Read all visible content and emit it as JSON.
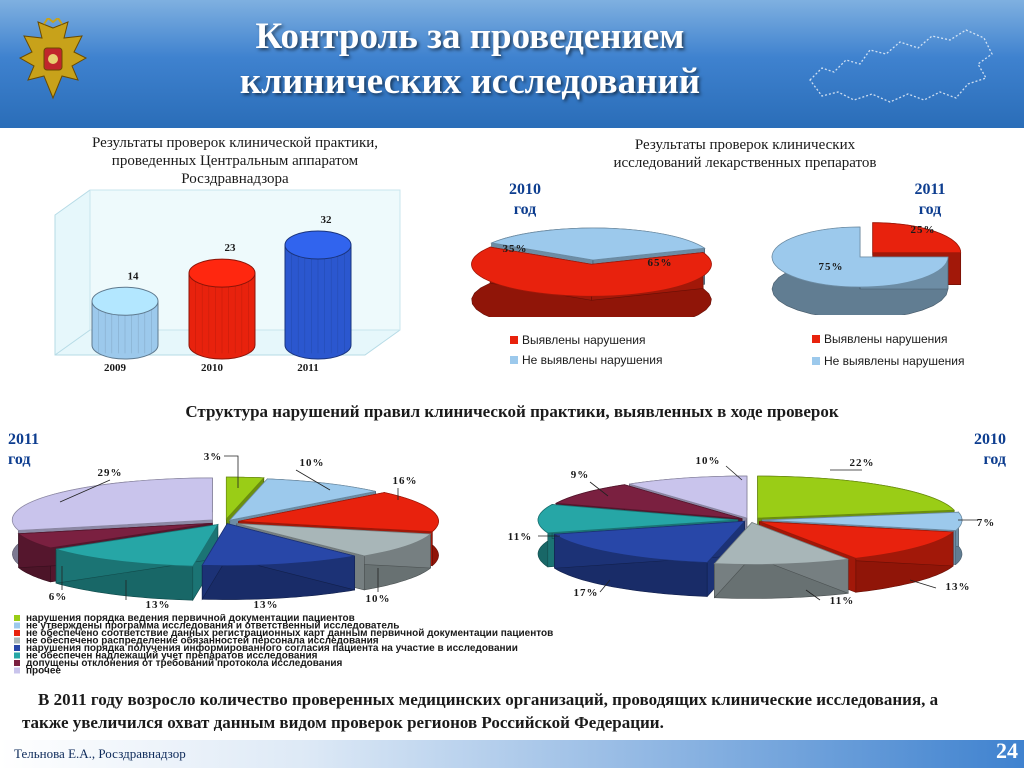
{
  "header": {
    "title_line1": "Контроль за проведением",
    "title_line2": "клинических исследований",
    "emblem_icon": "double-headed-eagle-emblem",
    "map_icon": "russia-map-outline"
  },
  "colors": {
    "header_blue": "#3f82cf",
    "red": "#e8220d",
    "light_blue": "#9cc9ec",
    "green": "#9acd16",
    "gray": "#a8b6b8",
    "navy": "#2847a8",
    "teal": "#26a6a6",
    "maroon": "#7a2040",
    "lavender": "#c9c4ec"
  },
  "bar_section": {
    "caption_line1": "Результаты проверок клинической практики,",
    "caption_line2": "проведенных Центральным аппаратом",
    "caption_line3": "Росздравнадзора"
  },
  "pie_top": {
    "caption_line1": "Результаты проверок клинических",
    "caption_line2": "исследований лекарственных препаратов",
    "left_year": "2010",
    "left_year_suffix": "год",
    "right_year": "2011",
    "right_year_suffix": "год",
    "legend_found": "Выявлены нарушения",
    "legend_not_found": "Не выявлены нарушения"
  },
  "structure": {
    "title": "Структура нарушений правил клинической практики, выявленных в ходе проверок",
    "left_year": "2011",
    "left_year_suffix": "год",
    "right_year": "2010",
    "right_year_suffix": "год",
    "legend": [
      "нарушения порядка ведения первичной документации пациентов",
      "не утверждены программа исследования и ответственный исследователь",
      "не обеспечено соответствие данных регистрационных карт данным первичной документации пациентов",
      "не обеспечено распределение обязанностей персонала исследования",
      "нарушения порядка получения информированного согласия пациента на участие в исследовании",
      "не обеспечен надлежащий учет препаратов исследования",
      "допущены отклонения от требований протокола исследования",
      "прочее"
    ]
  },
  "chart_data": [
    {
      "type": "bar",
      "title": "Результаты проверок клинической практики, проведенных Центральным аппаратом Росздравнадзора",
      "categories": [
        "2009",
        "2010",
        "2011"
      ],
      "values": [
        14,
        23,
        32
      ],
      "colors": [
        "#9cc9ec",
        "#e8220d",
        "#2b57cf"
      ]
    },
    {
      "type": "pie",
      "label": "2010 год",
      "labels": [
        "Выявлены нарушения",
        "Не выявлены нарушения"
      ],
      "values": [
        65,
        35
      ],
      "display": [
        "65%",
        "35%"
      ]
    },
    {
      "type": "pie",
      "label": "2011 год",
      "labels": [
        "Выявлены нарушения",
        "Не выявлены нарушения"
      ],
      "values": [
        25,
        75
      ],
      "display": [
        "25%",
        "75%"
      ]
    },
    {
      "type": "pie",
      "label": "2011 год",
      "labels": [
        "нарушения порядка ведения первичной документации пациентов",
        "не утверждены программа исследования и ответственный исследователь",
        "не обеспечено соответствие данных регистрационных карт данным первичной документации пациентов",
        "не обеспечено распределение обязанностей персонала исследования",
        "нарушения порядка получения информированного согласия пациента на участие в исследовании",
        "не обеспечен надлежащий учет препаратов исследования",
        "допущены отклонения от требований протокола исследования",
        "прочее"
      ],
      "values": [
        3,
        10,
        16,
        10,
        13,
        13,
        6,
        29
      ],
      "display": [
        "3%",
        "10%",
        "16%",
        "10%",
        "13%",
        "13%",
        "6%",
        "29%"
      ]
    },
    {
      "type": "pie",
      "label": "2010 год",
      "labels": [
        "нарушения порядка ведения первичной документации пациентов",
        "не утверждены программа исследования и ответственный исследователь",
        "не обеспечено соответствие данных регистрационных карт данным первичной документации пациентов",
        "не обеспечено распределение обязанностей персонала исследования",
        "нарушения порядка получения информированного согласия пациента на участие в исследовании",
        "не обеспечен надлежащий учет препаратов исследования",
        "допущены отклонения от требований протокола исследования",
        "прочее"
      ],
      "values": [
        22,
        7,
        13,
        11,
        17,
        11,
        9,
        10
      ],
      "display": [
        "22%",
        "7%",
        "13%",
        "11%",
        "17%",
        "11%",
        "9%",
        "10%"
      ]
    }
  ],
  "summary": {
    "text": "В 2011 году возросло количество проверенных медицинских организаций, проводящих клинические исследования, а также увеличился охват данным видом проверок регионов Российской Федерации."
  },
  "footer": {
    "author": "Тельнова Е.А., Росздравнадзор",
    "page": "24"
  }
}
